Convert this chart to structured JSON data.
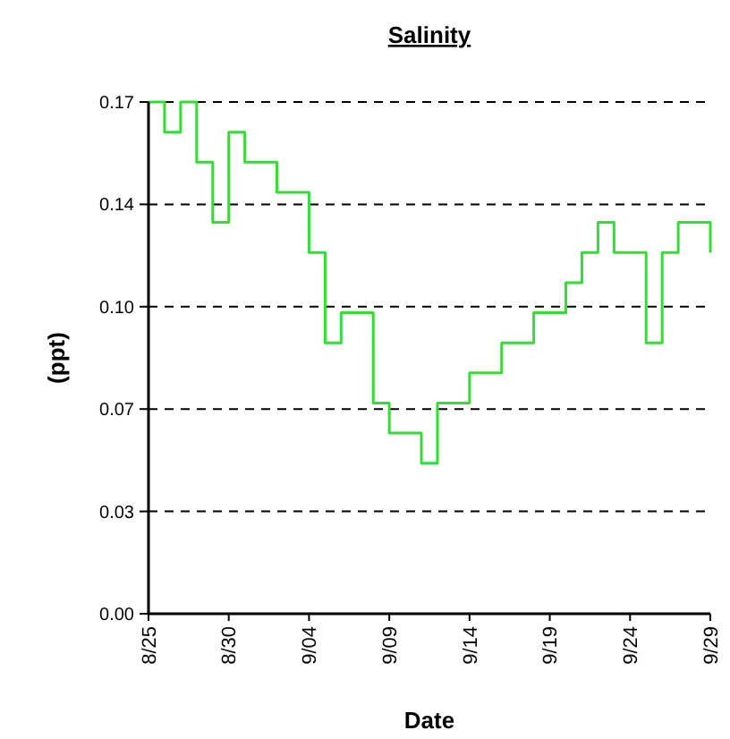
{
  "chart_data": {
    "type": "step",
    "title": "Salinity",
    "xlabel": "Date",
    "ylabel": "(ppt)",
    "x": [
      "--08-25",
      "--08-26",
      "--08-27",
      "--08-28",
      "--08-29",
      "--08-30",
      "--08-31",
      "--09-01",
      "--09-02",
      "--09-03",
      "--09-04",
      "--09-05",
      "--09-06",
      "--09-07",
      "--09-08",
      "--09-09",
      "--09-10",
      "--09-11",
      "--09-12",
      "--09-13",
      "--09-14",
      "--09-15",
      "--09-16",
      "--09-17",
      "--09-18",
      "--09-19",
      "--09-20",
      "--09-21",
      "--09-22",
      "--09-23",
      "--09-24",
      "--09-25",
      "--09-26",
      "--09-27",
      "--09-28",
      "--09-29"
    ],
    "series": [
      {
        "color": "#33dd33",
        "values": [
          0.17,
          0.16,
          0.17,
          0.15,
          0.13,
          0.16,
          0.15,
          0.15,
          0.14,
          0.14,
          0.12,
          0.09,
          0.1,
          0.1,
          0.07,
          0.06,
          0.06,
          0.05,
          0.07,
          0.07,
          0.08,
          0.08,
          0.09,
          0.09,
          0.1,
          0.1,
          0.11,
          0.12,
          0.13,
          0.12,
          0.12,
          0.09,
          0.12,
          0.13,
          0.13,
          0.12
        ]
      }
    ],
    "xlim": [
      "--08-25",
      "--09-29"
    ],
    "xticks": [
      {
        "value": "--08-25",
        "label": "8/25"
      },
      {
        "value": "--08-30",
        "label": "8/30"
      },
      {
        "value": "--09-04",
        "label": "9/04"
      },
      {
        "value": "--09-09",
        "label": "9/09"
      },
      {
        "value": "--09-14",
        "label": "9/14"
      },
      {
        "value": "--09-19",
        "label": "9/19"
      },
      {
        "value": "--09-24",
        "label": "9/24"
      },
      {
        "value": "--09-29",
        "label": "9/29"
      }
    ],
    "ylim": [
      0,
      0.17
    ],
    "yticks": [
      {
        "value": 0,
        "label": "0.00"
      },
      {
        "value": 0.034,
        "label": "0.03"
      },
      {
        "value": 0.068,
        "label": "0.07"
      },
      {
        "value": 0.102,
        "label": "0.10"
      },
      {
        "value": 0.136,
        "label": "0.14"
      },
      {
        "value": 0.17,
        "label": "0.17"
      }
    ],
    "grid": "y",
    "line_style": "solid"
  }
}
